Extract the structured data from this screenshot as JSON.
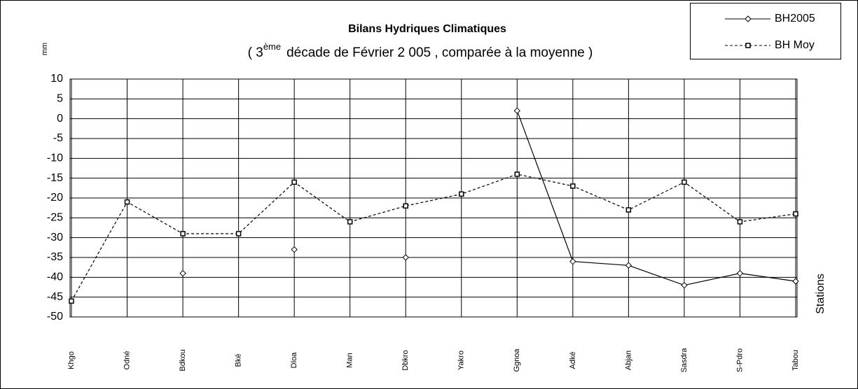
{
  "chart_data": {
    "type": "line",
    "title": "Bilans Hydriques Climatiques",
    "subtitle": [
      "( 3",
      "ème",
      "décade   de Février  2 005 , comparée à la moyenne )"
    ],
    "y_label": "mm",
    "x_label": "Stations",
    "categories": [
      "Khgo",
      "Odné",
      "Bdkou",
      "Bké",
      "Dloa",
      "Man",
      "Dbkro",
      "Yakro",
      "Ggnoa",
      "Adké",
      "Abjan",
      "Sasdra",
      "S-Pdro",
      "Tabou"
    ],
    "series": [
      {
        "name": "BH2005",
        "color": "#000000",
        "dash": false,
        "marker": "diamond",
        "values": [
          null,
          null,
          -39,
          null,
          -33,
          null,
          -35,
          null,
          2,
          -36,
          -37,
          -42,
          -39,
          -41
        ]
      },
      {
        "name": "BH Moy",
        "color": "#000000",
        "dash": true,
        "marker": "square",
        "values": [
          -46,
          -21,
          -29,
          -29,
          -16,
          -26,
          -22,
          -19,
          -14,
          -17,
          -23,
          -16,
          -26,
          -24
        ]
      }
    ],
    "ylim": [
      -50,
      10
    ],
    "yticks": [
      -50,
      -45,
      -40,
      -35,
      -30,
      -25,
      -20,
      -15,
      -10,
      -5,
      0,
      5,
      10
    ],
    "grid": true,
    "legend": "top-right"
  }
}
